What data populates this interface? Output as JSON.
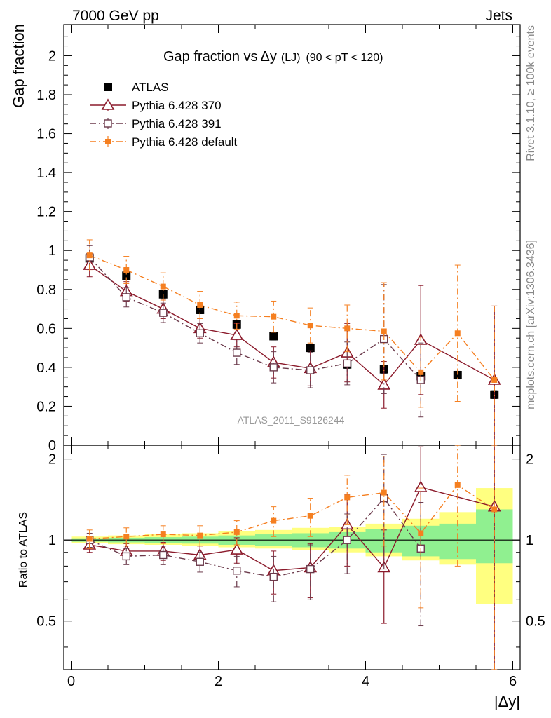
{
  "header": {
    "left": "7000 GeV pp",
    "right": "Jets"
  },
  "side_labels": {
    "rivet": "Rivet 3.1.10, ≥ 100k events",
    "mcplots": "mcplots.cern.ch [arXiv:1306.3436]"
  },
  "chart_data": {
    "type": "scatter",
    "title_main": "Gap fraction vs",
    "title_delta": "Δy",
    "title_lj": "(LJ)",
    "title_range": "(90 < pT < 120)",
    "watermark": "ATLAS_2011_S9126244",
    "xlabel": "|Δy|",
    "ylabel_top": "Gap fraction",
    "ylabel_bottom": "Ratio to ATLAS",
    "xlim": [
      -0.1,
      6.1
    ],
    "ylim_top": [
      0,
      2.16
    ],
    "ylim_bottom": [
      0.33,
      2.25
    ],
    "x_ticks": [
      "0",
      "2",
      "4",
      "6"
    ],
    "y_ticks_top": [
      "0",
      "0.2",
      "0.4",
      "0.6",
      "0.8",
      "1",
      "1.2",
      "1.4",
      "1.6",
      "1.8",
      "2"
    ],
    "y_ticks_bottom": [
      "0.5",
      "1",
      "2"
    ],
    "x": [
      0.25,
      0.75,
      1.25,
      1.75,
      2.25,
      2.75,
      3.25,
      3.75,
      4.25,
      4.75,
      5.25,
      5.75
    ],
    "band_edges": [
      0,
      0.5,
      1.0,
      1.5,
      2.0,
      2.5,
      3.0,
      3.5,
      4.0,
      4.5,
      5.0,
      5.5,
      6.0
    ],
    "band_inner": [
      [
        0.985,
        1.015
      ],
      [
        0.98,
        1.02
      ],
      [
        0.975,
        1.025
      ],
      [
        0.97,
        1.03
      ],
      [
        0.96,
        1.04
      ],
      [
        0.95,
        1.05
      ],
      [
        0.94,
        1.06
      ],
      [
        0.93,
        1.07
      ],
      [
        0.9,
        1.1
      ],
      [
        0.87,
        1.13
      ],
      [
        0.85,
        1.15
      ],
      [
        0.82,
        1.3
      ]
    ],
    "band_outer": [
      [
        0.975,
        1.03
      ],
      [
        0.965,
        1.04
      ],
      [
        0.96,
        1.05
      ],
      [
        0.95,
        1.06
      ],
      [
        0.94,
        1.08
      ],
      [
        0.93,
        1.09
      ],
      [
        0.92,
        1.11
      ],
      [
        0.9,
        1.12
      ],
      [
        0.87,
        1.15
      ],
      [
        0.84,
        1.2
      ],
      [
        0.81,
        1.27
      ],
      [
        0.58,
        1.56
      ]
    ],
    "series": [
      {
        "name": "ATLAS",
        "style": "data",
        "color": "#000000",
        "values": [
          0.96,
          0.87,
          0.775,
          0.695,
          0.62,
          0.56,
          0.5,
          0.415,
          0.39,
          0.355,
          0.36,
          0.26
        ],
        "errors": [
          0.02,
          0.02,
          0.02,
          0.02,
          0.02,
          0.02,
          0.02,
          0.02,
          0.02,
          0.02,
          0.02,
          0.02
        ],
        "ratio": [
          1,
          1,
          1,
          1,
          1,
          1,
          1,
          1,
          1,
          1,
          1,
          1
        ],
        "ratio_errors": [
          0,
          0,
          0,
          0,
          0,
          0,
          0,
          0,
          0,
          0,
          0,
          0
        ]
      },
      {
        "name": "Pythia 6.428 370",
        "style": "solid-triangle",
        "color": "#8b1a2b",
        "x": [
          0.25,
          0.75,
          1.25,
          1.75,
          2.25,
          2.75,
          3.25,
          3.75,
          4.25,
          4.75,
          5.75
        ],
        "values": [
          0.925,
          0.79,
          0.7,
          0.6,
          0.565,
          0.425,
          0.395,
          0.475,
          0.31,
          0.54,
          0.335
        ],
        "errors": [
          0.06,
          0.05,
          0.05,
          0.05,
          0.06,
          0.08,
          0.09,
          0.15,
          0.12,
          0.28,
          0.38
        ],
        "ratio": [
          0.96,
          0.91,
          0.91,
          0.88,
          0.92,
          0.77,
          0.79,
          1.14,
          0.79,
          1.57,
          1.33
        ],
        "ratio_errors": [
          0.06,
          0.06,
          0.07,
          0.07,
          0.1,
          0.14,
          0.18,
          0.34,
          0.3,
          0.65,
          1.0
        ]
      },
      {
        "name": "Pythia 6.428 391",
        "style": "dashdot-square",
        "color": "#6b3a4b",
        "x": [
          0.25,
          0.75,
          1.25,
          1.75,
          2.25,
          2.75,
          3.25,
          3.75,
          4.25,
          4.75
        ],
        "values": [
          0.965,
          0.76,
          0.68,
          0.575,
          0.475,
          0.4,
          0.385,
          0.42,
          0.545,
          0.335
        ],
        "errors": [
          0.06,
          0.05,
          0.05,
          0.05,
          0.06,
          0.08,
          0.09,
          0.11,
          0.28,
          0.19
        ],
        "ratio": [
          1.0,
          0.87,
          0.88,
          0.83,
          0.77,
          0.73,
          0.78,
          1.0,
          1.43,
          0.93
        ],
        "ratio_errors": [
          0.06,
          0.06,
          0.07,
          0.07,
          0.1,
          0.14,
          0.18,
          0.25,
          0.65,
          0.45
        ]
      },
      {
        "name": "Pythia 6.428 default",
        "style": "dashdot-orange",
        "color": "#f57f20",
        "x": [
          0.25,
          0.75,
          1.25,
          1.75,
          2.25,
          2.75,
          3.25,
          3.75,
          4.25,
          4.75,
          5.25,
          5.75
        ],
        "values": [
          0.975,
          0.9,
          0.815,
          0.72,
          0.665,
          0.66,
          0.615,
          0.6,
          0.585,
          0.375,
          0.575,
          0.335
        ],
        "errors": [
          0.08,
          0.07,
          0.07,
          0.07,
          0.07,
          0.08,
          0.09,
          0.12,
          0.25,
          0.18,
          0.35,
          0.38
        ],
        "ratio": [
          1.01,
          1.03,
          1.05,
          1.04,
          1.07,
          1.18,
          1.23,
          1.44,
          1.5,
          1.06,
          1.6,
          1.3
        ],
        "ratio_errors": [
          0.08,
          0.08,
          0.08,
          0.09,
          0.11,
          0.15,
          0.2,
          0.3,
          0.55,
          0.5,
          0.8,
          1.0
        ]
      }
    ]
  }
}
